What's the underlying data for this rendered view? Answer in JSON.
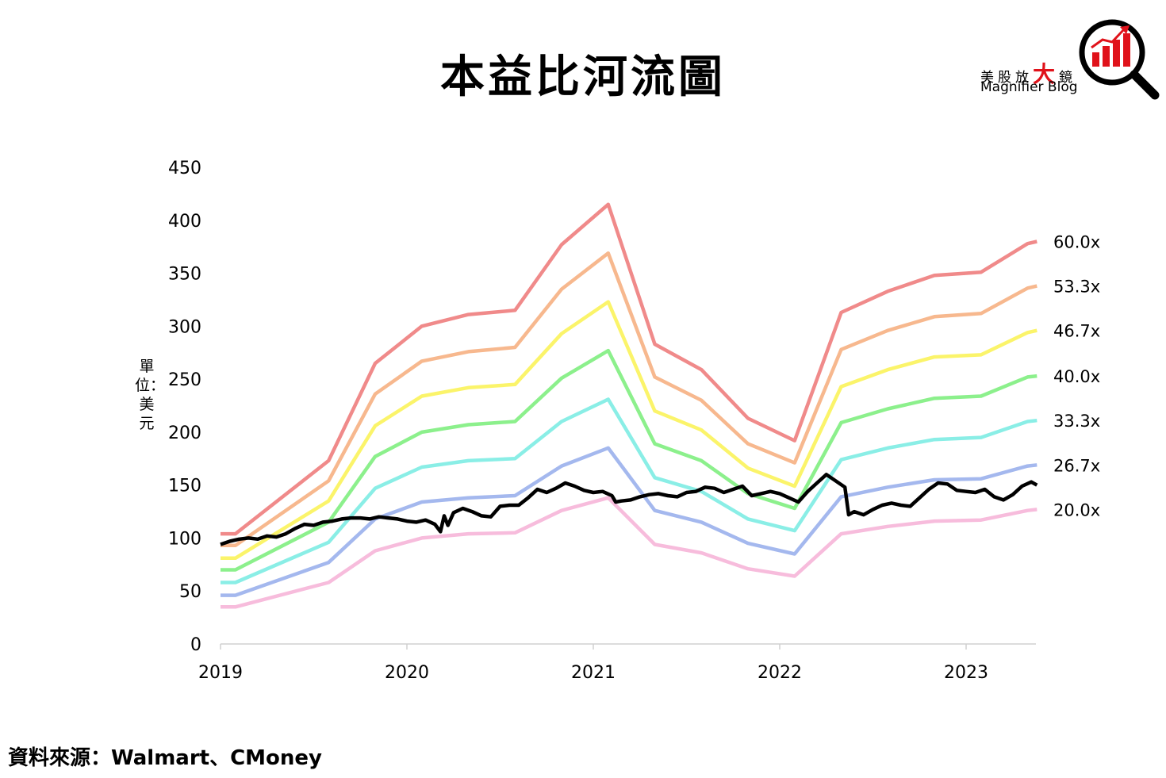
{
  "title": "本益比河流圖",
  "logo": {
    "cn_prefix": "美股放",
    "cn_big": "大",
    "cn_suffix": "鏡",
    "en": "Magnifier Blog",
    "accent_color": "#e0121a",
    "icon": "magnifier-bar-chart-icon"
  },
  "source": "資料來源：Walmart、CMoney",
  "chart_data": {
    "type": "line",
    "title": "本益比河流圖",
    "xlabel": "",
    "ylabel": "單位：美元",
    "ylim": [
      0,
      450
    ],
    "xlim": [
      2019.0,
      2023.38
    ],
    "yticks": [
      "0",
      "50",
      "100",
      "150",
      "200",
      "250",
      "300",
      "350",
      "400",
      "450"
    ],
    "xticks": [
      "2019",
      "2020",
      "2021",
      "2022",
      "2023"
    ],
    "grid": false,
    "eps_dates": [
      2019.0,
      2019.08,
      2019.58,
      2019.83,
      2020.08,
      2020.33,
      2020.58,
      2020.83,
      2021.08,
      2021.33,
      2021.58,
      2021.83,
      2022.08,
      2022.33,
      2022.58,
      2022.83,
      2023.08,
      2023.33,
      2023.38
    ],
    "series": [
      {
        "name": "60.0x",
        "color": "#f08a8a",
        "values": [
          104,
          104,
          173,
          265,
          300,
          311,
          315,
          377,
          415,
          283,
          259,
          213,
          192,
          313,
          333,
          348,
          351,
          378,
          380
        ]
      },
      {
        "name": "53.3x",
        "color": "#f7b88e",
        "values": [
          93,
          93,
          154,
          236,
          267,
          276,
          280,
          335,
          369,
          252,
          230,
          189,
          171,
          278,
          296,
          309,
          312,
          336,
          338
        ]
      },
      {
        "name": "46.7x",
        "color": "#fbf46a",
        "values": [
          81,
          81,
          135,
          206,
          234,
          242,
          245,
          293,
          323,
          220,
          202,
          166,
          149,
          243,
          259,
          271,
          273,
          294,
          296
        ]
      },
      {
        "name": "40.0x",
        "color": "#8cf08c",
        "values": [
          70,
          70,
          115,
          177,
          200,
          207,
          210,
          251,
          277,
          189,
          173,
          142,
          128,
          209,
          222,
          232,
          234,
          252,
          253
        ]
      },
      {
        "name": "33.3x",
        "color": "#8aeee6",
        "values": [
          58,
          58,
          96,
          147,
          167,
          173,
          175,
          210,
          231,
          157,
          144,
          118,
          107,
          174,
          185,
          193,
          195,
          210,
          211
        ]
      },
      {
        "name": "26.7x",
        "color": "#a4b8ee",
        "values": [
          46,
          46,
          77,
          118,
          134,
          138,
          140,
          168,
          185,
          126,
          115,
          95,
          85,
          139,
          148,
          155,
          156,
          168,
          169
        ]
      },
      {
        "name": "20.0x",
        "color": "#f7bcdc",
        "values": [
          35,
          35,
          58,
          88,
          100,
          104,
          105,
          126,
          138,
          94,
          86,
          71,
          64,
          104,
          111,
          116,
          117,
          126,
          127
        ]
      }
    ],
    "price": {
      "color": "#000000",
      "x": [
        2019.0,
        2019.05,
        2019.1,
        2019.15,
        2019.2,
        2019.25,
        2019.3,
        2019.35,
        2019.4,
        2019.45,
        2019.5,
        2019.55,
        2019.6,
        2019.65,
        2019.7,
        2019.75,
        2019.8,
        2019.85,
        2019.9,
        2019.95,
        2020.0,
        2020.05,
        2020.1,
        2020.15,
        2020.18,
        2020.2,
        2020.22,
        2020.25,
        2020.3,
        2020.35,
        2020.4,
        2020.45,
        2020.5,
        2020.55,
        2020.6,
        2020.65,
        2020.7,
        2020.75,
        2020.8,
        2020.85,
        2020.9,
        2020.95,
        2021.0,
        2021.05,
        2021.1,
        2021.12,
        2021.15,
        2021.2,
        2021.25,
        2021.3,
        2021.35,
        2021.4,
        2021.45,
        2021.5,
        2021.55,
        2021.6,
        2021.65,
        2021.7,
        2021.75,
        2021.8,
        2021.85,
        2021.9,
        2021.95,
        2022.0,
        2022.05,
        2022.1,
        2022.15,
        2022.2,
        2022.25,
        2022.3,
        2022.35,
        2022.37,
        2022.4,
        2022.45,
        2022.5,
        2022.55,
        2022.6,
        2022.65,
        2022.7,
        2022.75,
        2022.8,
        2022.85,
        2022.9,
        2022.95,
        2023.0,
        2023.05,
        2023.1,
        2023.15,
        2023.2,
        2023.25,
        2023.3,
        2023.35,
        2023.38
      ],
      "y": [
        94,
        97,
        99,
        100,
        99,
        102,
        101,
        104,
        109,
        113,
        112,
        115,
        116,
        118,
        119,
        119,
        118,
        120,
        119,
        118,
        116,
        115,
        117,
        113,
        106,
        121,
        112,
        124,
        128,
        125,
        121,
        120,
        130,
        131,
        131,
        138,
        146,
        143,
        147,
        152,
        149,
        145,
        143,
        144,
        140,
        134,
        135,
        136,
        139,
        141,
        142,
        140,
        139,
        143,
        144,
        148,
        147,
        143,
        146,
        149,
        140,
        142,
        144,
        142,
        138,
        134,
        144,
        152,
        160,
        154,
        148,
        122,
        125,
        122,
        127,
        131,
        133,
        131,
        130,
        138,
        146,
        152,
        151,
        145,
        144,
        143,
        146,
        139,
        136,
        141,
        149,
        153,
        150
      ]
    }
  }
}
